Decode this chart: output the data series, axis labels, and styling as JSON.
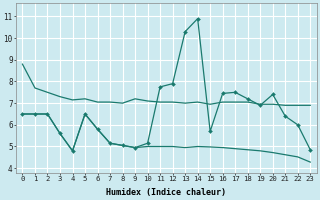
{
  "title": "",
  "xlabel": "Humidex (Indice chaleur)",
  "background_color": "#cdeaf0",
  "grid_color": "#ffffff",
  "line_color": "#1a7a6e",
  "xlim": [
    -0.5,
    23.5
  ],
  "ylim": [
    3.8,
    11.6
  ],
  "xticks": [
    0,
    1,
    2,
    3,
    4,
    5,
    6,
    7,
    8,
    9,
    10,
    11,
    12,
    13,
    14,
    15,
    16,
    17,
    18,
    19,
    20,
    21,
    22,
    23
  ],
  "yticks": [
    4,
    5,
    6,
    7,
    8,
    9,
    10,
    11
  ],
  "line1_x": [
    0,
    1,
    2,
    3,
    4,
    5,
    6,
    7,
    8,
    9,
    10,
    11,
    12,
    13,
    14,
    15,
    16,
    17,
    18,
    19,
    20,
    21,
    22,
    23
  ],
  "line1_y": [
    8.8,
    7.7,
    7.5,
    7.3,
    7.15,
    7.2,
    7.05,
    7.05,
    7.0,
    7.2,
    7.1,
    7.05,
    7.05,
    7.0,
    7.05,
    6.95,
    7.05,
    7.05,
    7.05,
    6.95,
    6.95,
    6.9,
    6.9,
    6.9
  ],
  "line2_x": [
    0,
    1,
    2,
    3,
    4,
    5,
    6,
    7,
    8,
    9,
    10,
    11,
    12,
    13,
    14,
    15,
    16,
    17,
    18,
    19,
    20,
    21,
    22,
    23
  ],
  "line2_y": [
    6.5,
    6.5,
    6.5,
    5.6,
    4.8,
    6.5,
    5.8,
    5.15,
    5.05,
    4.95,
    5.15,
    7.75,
    7.9,
    10.3,
    10.9,
    5.7,
    7.45,
    7.5,
    7.2,
    6.9,
    7.4,
    6.4,
    6.0,
    4.85
  ],
  "line3_x": [
    0,
    1,
    2,
    3,
    4,
    5,
    6,
    7,
    8,
    9,
    10,
    11,
    12,
    13,
    14,
    15,
    16,
    17,
    18,
    19,
    20,
    21,
    22,
    23
  ],
  "line3_y": [
    6.5,
    6.5,
    6.5,
    5.6,
    4.8,
    6.5,
    5.8,
    5.15,
    5.05,
    4.95,
    5.0,
    5.0,
    5.0,
    4.95,
    5.0,
    4.98,
    4.95,
    4.9,
    4.85,
    4.8,
    4.72,
    4.62,
    4.52,
    4.28
  ],
  "xlabel_fontsize": 6.0,
  "tick_fontsize": 5.2
}
